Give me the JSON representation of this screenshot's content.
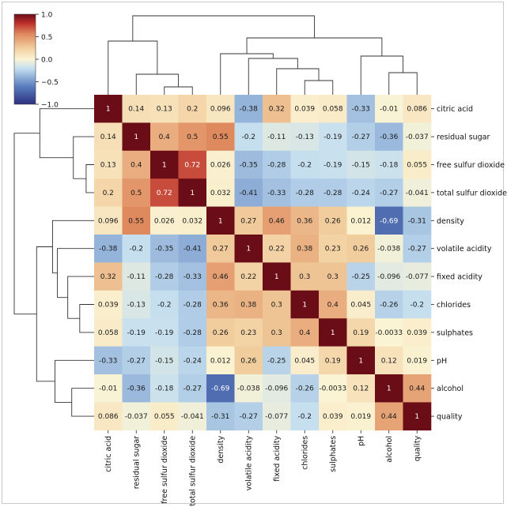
{
  "chart_data": {
    "type": "heatmap",
    "title": "",
    "labels": [
      "citric acid",
      "residual sugar",
      "free sulfur dioxide",
      "total sulfur dioxide",
      "density",
      "volatile acidity",
      "fixed acidity",
      "chlorides",
      "sulphates",
      "pH",
      "alcohol",
      "quality"
    ],
    "matrix": [
      [
        1,
        0.14,
        0.13,
        0.2,
        0.096,
        -0.38,
        0.32,
        0.039,
        0.058,
        -0.33,
        -0.01,
        0.086
      ],
      [
        0.14,
        1,
        0.4,
        0.5,
        0.55,
        -0.2,
        -0.11,
        -0.13,
        -0.19,
        -0.27,
        -0.36,
        -0.037
      ],
      [
        0.13,
        0.4,
        1,
        0.72,
        0.026,
        -0.35,
        -0.28,
        -0.2,
        -0.19,
        -0.15,
        -0.18,
        0.055
      ],
      [
        0.2,
        0.5,
        0.72,
        1,
        0.032,
        -0.41,
        -0.33,
        -0.28,
        -0.28,
        -0.24,
        -0.27,
        -0.041
      ],
      [
        0.096,
        0.55,
        0.026,
        0.032,
        1,
        0.27,
        0.46,
        0.36,
        0.26,
        0.012,
        -0.69,
        -0.31
      ],
      [
        -0.38,
        -0.2,
        -0.35,
        -0.41,
        0.27,
        1,
        0.22,
        0.38,
        0.23,
        0.26,
        -0.038,
        -0.27
      ],
      [
        0.32,
        -0.11,
        -0.28,
        -0.33,
        0.46,
        0.22,
        1,
        0.3,
        0.3,
        -0.25,
        -0.096,
        -0.077
      ],
      [
        0.039,
        -0.13,
        -0.2,
        -0.28,
        0.36,
        0.38,
        0.3,
        1,
        0.4,
        0.045,
        -0.26,
        -0.2
      ],
      [
        0.058,
        -0.19,
        -0.19,
        -0.28,
        0.26,
        0.23,
        0.3,
        0.4,
        1,
        0.19,
        -0.0033,
        0.039
      ],
      [
        -0.33,
        -0.27,
        -0.15,
        -0.24,
        0.012,
        0.26,
        -0.25,
        0.045,
        0.19,
        1,
        0.12,
        0.019
      ],
      [
        -0.01,
        -0.36,
        -0.18,
        -0.27,
        -0.69,
        -0.038,
        -0.096,
        -0.26,
        -0.0033,
        0.12,
        1,
        0.44
      ],
      [
        0.086,
        -0.037,
        0.055,
        -0.041,
        -0.31,
        -0.27,
        -0.077,
        -0.2,
        0.039,
        0.019,
        0.44,
        1
      ]
    ],
    "colorbar": {
      "range": [
        -1.0,
        1.0
      ],
      "ticks": [
        "1.0",
        "0.5",
        "0.0",
        "−0.5",
        "−1.0"
      ],
      "colormap": "RdYlBu reversed (blue → cream → dark red)"
    },
    "dendrograms": [
      "top (columns)",
      "left (rows)"
    ],
    "grid": false
  }
}
